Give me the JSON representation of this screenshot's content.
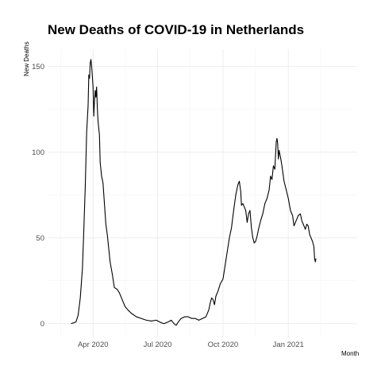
{
  "chart_data": {
    "type": "line",
    "title": "New Deaths of COVID-19 in Netherlands",
    "xlabel": "Month",
    "ylabel": "New Deaths",
    "xlim": [
      "2020-01-28",
      "2021-04-08"
    ],
    "ylim": [
      -8,
      160
    ],
    "x_ticks": [
      {
        "date": "2020-04-01",
        "label": "Apr 2020"
      },
      {
        "date": "2020-07-01",
        "label": "Jul 2020"
      },
      {
        "date": "2020-10-01",
        "label": "Oct 2020"
      },
      {
        "date": "2021-01-01",
        "label": "Jan 2021"
      }
    ],
    "y_ticks": [
      0,
      50,
      100,
      150
    ],
    "grid": true,
    "legend": "none",
    "series": [
      {
        "color": "#000000",
        "points": [
          [
            "2020-03-01",
            0
          ],
          [
            "2020-03-05",
            0.5
          ],
          [
            "2020-03-08",
            1
          ],
          [
            "2020-03-11",
            5
          ],
          [
            "2020-03-14",
            15
          ],
          [
            "2020-03-17",
            32
          ],
          [
            "2020-03-19",
            55
          ],
          [
            "2020-03-21",
            80
          ],
          [
            "2020-03-23",
            112
          ],
          [
            "2020-03-25",
            127
          ],
          [
            "2020-03-26",
            145
          ],
          [
            "2020-03-27",
            143
          ],
          [
            "2020-03-28",
            152
          ],
          [
            "2020-03-29",
            154
          ],
          [
            "2020-03-30",
            150
          ],
          [
            "2020-04-01",
            138
          ],
          [
            "2020-04-02",
            121
          ],
          [
            "2020-04-03",
            130
          ],
          [
            "2020-04-04",
            136
          ],
          [
            "2020-04-05",
            132
          ],
          [
            "2020-04-06",
            138
          ],
          [
            "2020-04-07",
            126
          ],
          [
            "2020-04-08",
            118
          ],
          [
            "2020-04-10",
            110
          ],
          [
            "2020-04-11",
            94
          ],
          [
            "2020-04-12",
            90
          ],
          [
            "2020-04-13",
            86
          ],
          [
            "2020-04-15",
            82
          ],
          [
            "2020-04-17",
            70
          ],
          [
            "2020-04-19",
            58
          ],
          [
            "2020-04-21",
            52
          ],
          [
            "2020-04-23",
            44
          ],
          [
            "2020-04-25",
            36
          ],
          [
            "2020-04-28",
            29
          ],
          [
            "2020-05-01",
            21
          ],
          [
            "2020-05-05",
            20
          ],
          [
            "2020-05-08",
            18
          ],
          [
            "2020-05-12",
            14
          ],
          [
            "2020-05-16",
            10
          ],
          [
            "2020-05-20",
            8
          ],
          [
            "2020-05-25",
            6
          ],
          [
            "2020-06-01",
            4
          ],
          [
            "2020-06-08",
            3
          ],
          [
            "2020-06-15",
            2
          ],
          [
            "2020-06-22",
            1.5
          ],
          [
            "2020-06-29",
            2
          ],
          [
            "2020-07-06",
            0.5
          ],
          [
            "2020-07-10",
            0
          ],
          [
            "2020-07-16",
            1
          ],
          [
            "2020-07-20",
            2
          ],
          [
            "2020-07-24",
            0
          ],
          [
            "2020-07-27",
            -1
          ],
          [
            "2020-07-30",
            1
          ],
          [
            "2020-08-03",
            3
          ],
          [
            "2020-08-08",
            4
          ],
          [
            "2020-08-13",
            4
          ],
          [
            "2020-08-18",
            3
          ],
          [
            "2020-08-23",
            3
          ],
          [
            "2020-08-28",
            2
          ],
          [
            "2020-09-02",
            3
          ],
          [
            "2020-09-07",
            4
          ],
          [
            "2020-09-11",
            8
          ],
          [
            "2020-09-13",
            12
          ],
          [
            "2020-09-15",
            15
          ],
          [
            "2020-09-17",
            14
          ],
          [
            "2020-09-19",
            11
          ],
          [
            "2020-09-21",
            16
          ],
          [
            "2020-09-24",
            19
          ],
          [
            "2020-09-27",
            23
          ],
          [
            "2020-10-01",
            26
          ],
          [
            "2020-10-04",
            34
          ],
          [
            "2020-10-07",
            42
          ],
          [
            "2020-10-10",
            50
          ],
          [
            "2020-10-13",
            56
          ],
          [
            "2020-10-16",
            66
          ],
          [
            "2020-10-19",
            75
          ],
          [
            "2020-10-22",
            81
          ],
          [
            "2020-10-24",
            83
          ],
          [
            "2020-10-26",
            77
          ],
          [
            "2020-10-27",
            69
          ],
          [
            "2020-10-29",
            70
          ],
          [
            "2020-10-31",
            68
          ],
          [
            "2020-11-02",
            66
          ],
          [
            "2020-11-04",
            59
          ],
          [
            "2020-11-06",
            64
          ],
          [
            "2020-11-08",
            66
          ],
          [
            "2020-11-10",
            56
          ],
          [
            "2020-11-12",
            50
          ],
          [
            "2020-11-14",
            47
          ],
          [
            "2020-11-16",
            48
          ],
          [
            "2020-11-18",
            51
          ],
          [
            "2020-11-20",
            55
          ],
          [
            "2020-11-23",
            60
          ],
          [
            "2020-11-26",
            64
          ],
          [
            "2020-11-29",
            70
          ],
          [
            "2020-12-02",
            73
          ],
          [
            "2020-12-05",
            78
          ],
          [
            "2020-12-07",
            86
          ],
          [
            "2020-12-09",
            84
          ],
          [
            "2020-12-11",
            92
          ],
          [
            "2020-12-13",
            90
          ],
          [
            "2020-12-14",
            98
          ],
          [
            "2020-12-15",
            106
          ],
          [
            "2020-12-16",
            108
          ],
          [
            "2020-12-17",
            105
          ],
          [
            "2020-12-18",
            96
          ],
          [
            "2020-12-19",
            101
          ],
          [
            "2020-12-21",
            97
          ],
          [
            "2020-12-23",
            92
          ],
          [
            "2020-12-26",
            83
          ],
          [
            "2020-12-29",
            78
          ],
          [
            "2021-01-01",
            73
          ],
          [
            "2021-01-04",
            66
          ],
          [
            "2021-01-07",
            63
          ],
          [
            "2021-01-09",
            57
          ],
          [
            "2021-01-12",
            60
          ],
          [
            "2021-01-15",
            63
          ],
          [
            "2021-01-18",
            64
          ],
          [
            "2021-01-20",
            60
          ],
          [
            "2021-01-22",
            58
          ],
          [
            "2021-01-25",
            55
          ],
          [
            "2021-01-27",
            58
          ],
          [
            "2021-01-29",
            57
          ],
          [
            "2021-01-31",
            52
          ],
          [
            "2021-02-02",
            50
          ],
          [
            "2021-02-04",
            48
          ],
          [
            "2021-02-06",
            45
          ],
          [
            "2021-02-07",
            38
          ],
          [
            "2021-02-08",
            36
          ],
          [
            "2021-02-09",
            38
          ]
        ]
      }
    ]
  }
}
